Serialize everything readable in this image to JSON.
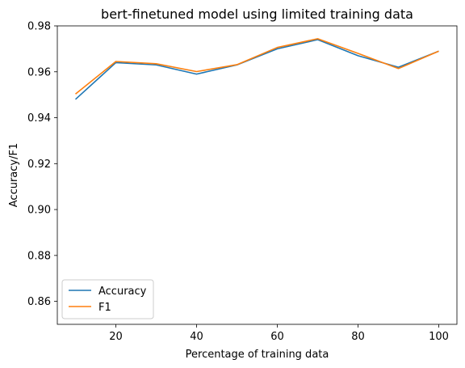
{
  "chart_data": {
    "type": "line",
    "title": "bert-finetuned model using limited training data",
    "xlabel": "Percentage of training data",
    "ylabel": "Accuracy/F1",
    "x": [
      10,
      20,
      30,
      40,
      50,
      60,
      70,
      80,
      90,
      100
    ],
    "xlim": [
      5.5,
      104.5
    ],
    "ylim": [
      0.85,
      0.98
    ],
    "xticks": [
      20,
      40,
      60,
      80,
      100
    ],
    "xtick_labels": [
      "20",
      "40",
      "60",
      "80",
      "100"
    ],
    "yticks": [
      0.86,
      0.88,
      0.9,
      0.92,
      0.94,
      0.96,
      0.98
    ],
    "ytick_labels": [
      "0.86",
      "0.88",
      "0.90",
      "0.92",
      "0.94",
      "0.96",
      "0.98"
    ],
    "grid": false,
    "legend_position": "lower-left",
    "series": [
      {
        "name": "Accuracy",
        "color": "#1f77b4",
        "values": [
          0.948,
          0.964,
          0.963,
          0.959,
          0.963,
          0.97,
          0.974,
          0.967,
          0.962,
          0.969
        ]
      },
      {
        "name": "F1",
        "color": "#ff7f0e",
        "values": [
          0.9503,
          0.9645,
          0.9635,
          0.9601,
          0.9631,
          0.9706,
          0.9744,
          0.968,
          0.9614,
          0.969
        ]
      }
    ]
  }
}
